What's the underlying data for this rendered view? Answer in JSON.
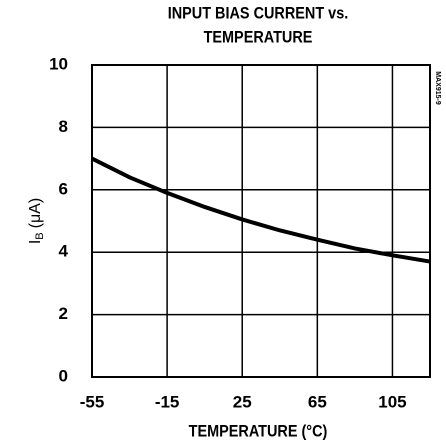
{
  "chart_data": {
    "type": "line",
    "title": [
      "INPUT BIAS CURRENT vs.",
      "TEMPERATURE"
    ],
    "xlabel": "TEMPERATURE (°C)",
    "ylabel": {
      "symbol": "I",
      "subscript": "B",
      "unit": "(μA)"
    },
    "annotation": "MAX915-9",
    "x": [
      -55,
      -35,
      -15,
      5,
      25,
      45,
      65,
      85,
      105,
      125
    ],
    "series": [
      {
        "name": "IB",
        "color": "#000000",
        "values": [
          7.0,
          6.4,
          5.9,
          5.45,
          5.05,
          4.7,
          4.4,
          4.12,
          3.9,
          3.7
        ]
      }
    ],
    "xlim": [
      -55,
      125
    ],
    "xticks": [
      -55,
      -15,
      25,
      65,
      105
    ],
    "ylim": [
      0,
      10
    ],
    "yticks": [
      0,
      2,
      4,
      6,
      8,
      10
    ],
    "grid": true
  }
}
